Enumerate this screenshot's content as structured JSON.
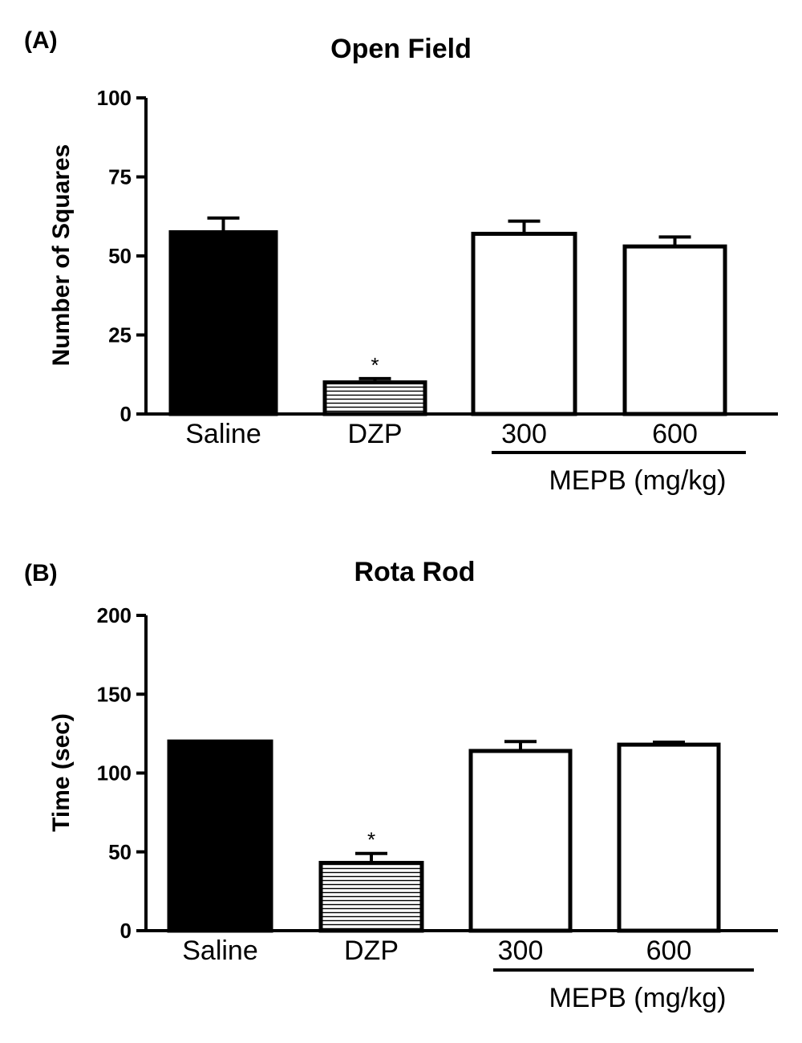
{
  "chart_data": [
    {
      "type": "bar",
      "panel_label": "(A)",
      "title": "Open Field",
      "ylabel": "Number of Squares",
      "ylim": [
        0,
        100
      ],
      "yticks": [
        "0",
        "25",
        "50",
        "75",
        "100"
      ],
      "categories": [
        "Saline",
        "DZP",
        "300",
        "600"
      ],
      "values": [
        57.5,
        10,
        57,
        53
      ],
      "errors": [
        4.5,
        1.2,
        4,
        3
      ],
      "fills": [
        "solid-black",
        "horizontal-stripes",
        "white",
        "white"
      ],
      "annotations": [
        "",
        "*",
        "",
        ""
      ],
      "group_label": "MEPB (mg/kg)",
      "group_categories": [
        "300",
        "600"
      ]
    },
    {
      "type": "bar",
      "panel_label": "(B)",
      "title": "Rota Rod",
      "ylabel": "Time (sec)",
      "ylim": [
        0,
        200
      ],
      "yticks": [
        "0",
        "50",
        "100",
        "150",
        "200"
      ],
      "categories": [
        "Saline",
        "DZP",
        "300",
        "600"
      ],
      "values": [
        120,
        43,
        114,
        118
      ],
      "errors": [
        0,
        6,
        6,
        1.5
      ],
      "fills": [
        "solid-black",
        "horizontal-stripes",
        "white",
        "white"
      ],
      "annotations": [
        "",
        "*",
        "",
        ""
      ],
      "group_label": "MEPB (mg/kg)",
      "group_categories": [
        "300",
        "600"
      ]
    }
  ]
}
